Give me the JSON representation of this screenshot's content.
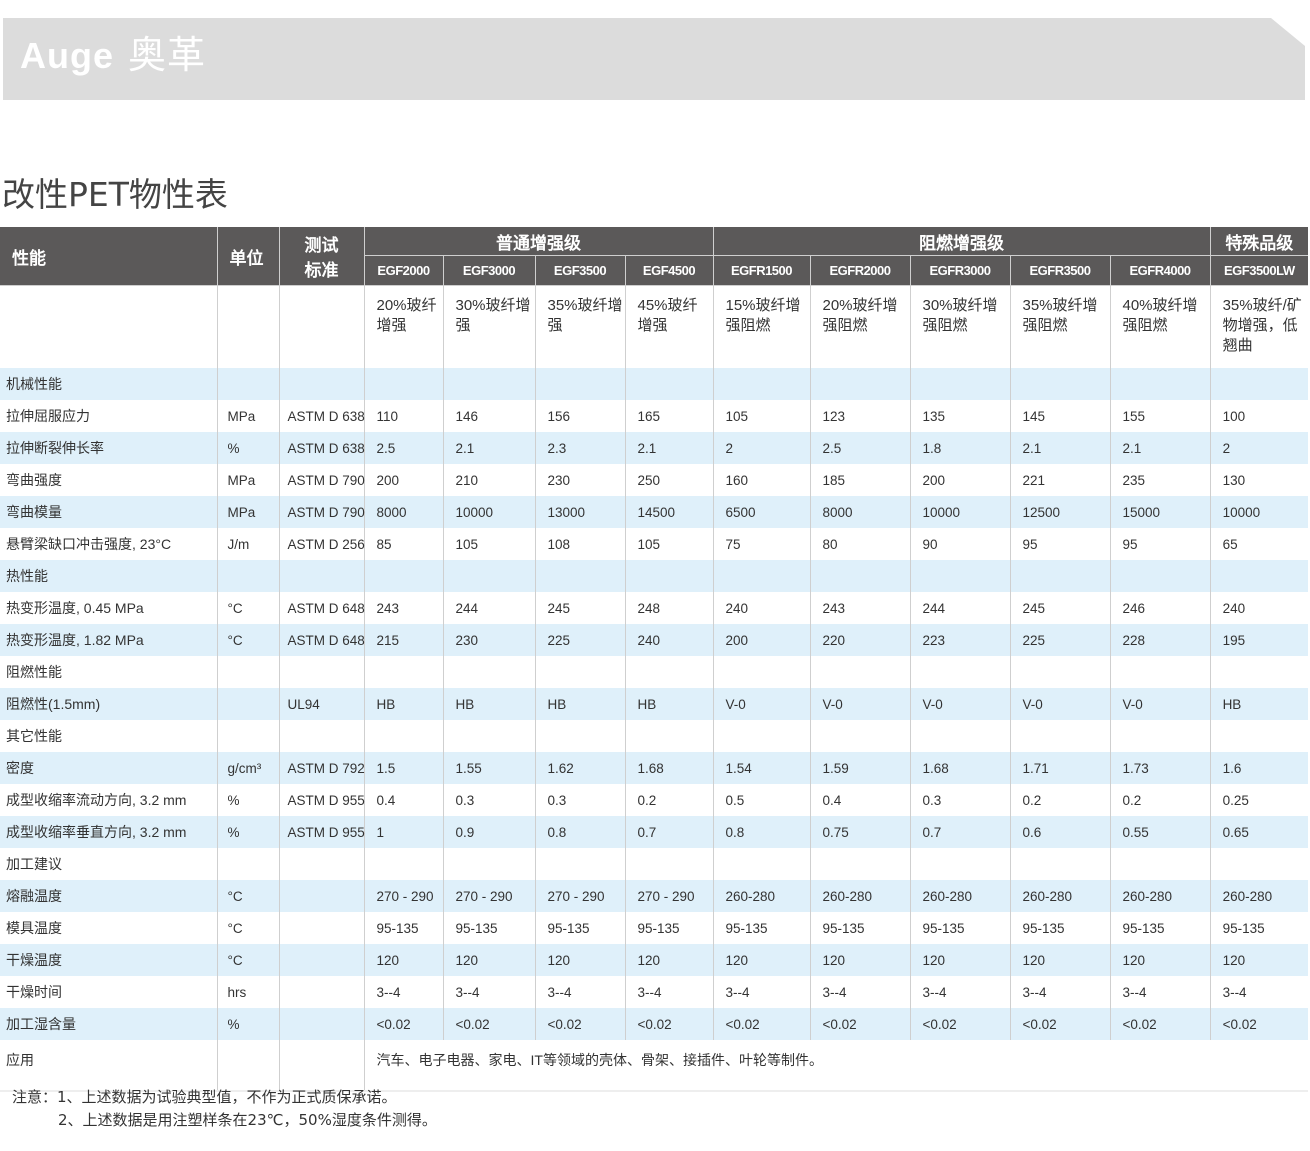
{
  "brand": {
    "latin": "Auge",
    "chinese": "奥革"
  },
  "title": "改性PET物性表",
  "header": {
    "property": "性能",
    "unit": "单位",
    "standard_line1": "测试",
    "standard_line2": "标准",
    "groups": [
      {
        "label": "普通增强级",
        "span": 4
      },
      {
        "label": "阻燃增强级",
        "span": 5
      },
      {
        "label": "特殊品级",
        "span": 1
      }
    ],
    "products": [
      "EGF2000",
      "EGF3000",
      "EGF3500",
      "EGF4500",
      "EGFR1500",
      "EGFR2000",
      "EGFR3000",
      "EGFR3500",
      "EGFR4000",
      "EGF3500LW"
    ],
    "descriptions": [
      "20%玻纤增强",
      "30%玻纤增强",
      "35%玻纤增强",
      "45%玻纤增强",
      "15%玻纤增强阻燃",
      "20%玻纤增强阻燃",
      "30%玻纤增强阻燃",
      "35%玻纤增强阻燃",
      "40%玻纤增强阻燃",
      "35%玻纤/矿物增强，低翘曲"
    ]
  },
  "rows": [
    {
      "label": "机械性能",
      "section": true
    },
    {
      "label": "拉伸屈服应力",
      "unit": "MPa",
      "standard": "ASTM D 638",
      "values": [
        "110",
        "146",
        "156",
        "165",
        "105",
        "123",
        "135",
        "145",
        "155",
        "100"
      ]
    },
    {
      "label": "拉伸断裂伸长率",
      "unit": "%",
      "standard": "ASTM D 638",
      "values": [
        "2.5",
        "2.1",
        "2.3",
        "2.1",
        "2",
        "2.5",
        "1.8",
        "2.1",
        "2.1",
        "2"
      ]
    },
    {
      "label": "弯曲强度",
      "unit": "MPa",
      "standard": "ASTM D 790",
      "values": [
        "200",
        "210",
        "230",
        "250",
        "160",
        "185",
        "200",
        "221",
        "235",
        "130"
      ]
    },
    {
      "label": "弯曲模量",
      "unit": "MPa",
      "standard": "ASTM D 790",
      "values": [
        "8000",
        "10000",
        "13000",
        "14500",
        "6500",
        "8000",
        "10000",
        "12500",
        "15000",
        "10000"
      ]
    },
    {
      "label": "悬臂梁缺口冲击强度, 23°C",
      "unit": "J/m",
      "standard": "ASTM D 256",
      "values": [
        "85",
        "105",
        "108",
        "105",
        "75",
        "80",
        "90",
        "95",
        "95",
        "65"
      ]
    },
    {
      "label": "热性能",
      "section": true
    },
    {
      "label": "热变形温度, 0.45 MPa",
      "unit": "°C",
      "standard": "ASTM D 648",
      "values": [
        "243",
        "244",
        "245",
        "248",
        "240",
        "243",
        "244",
        "245",
        "246",
        "240"
      ]
    },
    {
      "label": "热变形温度, 1.82 MPa",
      "unit": "°C",
      "standard": "ASTM D 648",
      "values": [
        "215",
        "230",
        "225",
        "240",
        "200",
        "220",
        "223",
        "225",
        "228",
        "195"
      ]
    },
    {
      "label": "阻燃性能",
      "section": true
    },
    {
      "label": "阻燃性(1.5mm)",
      "unit": "",
      "standard": "UL94",
      "values": [
        "HB",
        "HB",
        "HB",
        "HB",
        "V-0",
        "V-0",
        "V-0",
        "V-0",
        "V-0",
        "HB"
      ]
    },
    {
      "label": "其它性能",
      "section": true
    },
    {
      "label": "密度",
      "unit": "g/cm³",
      "standard": "ASTM D 792",
      "values": [
        "1.5",
        "1.55",
        "1.62",
        "1.68",
        "1.54",
        "1.59",
        "1.68",
        "1.71",
        "1.73",
        "1.6"
      ]
    },
    {
      "label": "成型收缩率流动方向, 3.2 mm",
      "unit": "%",
      "standard": "ASTM D 955",
      "values": [
        "0.4",
        "0.3",
        "0.3",
        "0.2",
        "0.5",
        "0.4",
        "0.3",
        "0.2",
        "0.2",
        "0.25"
      ]
    },
    {
      "label": "成型收缩率垂直方向, 3.2 mm",
      "unit": "%",
      "standard": "ASTM D 955",
      "values": [
        "1",
        "0.9",
        "0.8",
        "0.7",
        "0.8",
        "0.75",
        "0.7",
        "0.6",
        "0.55",
        "0.65"
      ]
    },
    {
      "label": "加工建议",
      "section": true
    },
    {
      "label": "熔融温度",
      "unit": "°C",
      "standard": "",
      "values": [
        "270 - 290",
        "270 - 290",
        "270 - 290",
        "270 - 290",
        "260-280",
        "260-280",
        "260-280",
        "260-280",
        "260-280",
        "260-280"
      ]
    },
    {
      "label": "模具温度",
      "unit": "°C",
      "standard": "",
      "values": [
        "95-135",
        "95-135",
        "95-135",
        "95-135",
        "95-135",
        "95-135",
        "95-135",
        "95-135",
        "95-135",
        "95-135"
      ]
    },
    {
      "label": "干燥温度",
      "unit": "°C",
      "standard": "",
      "values": [
        "120",
        "120",
        "120",
        "120",
        "120",
        "120",
        "120",
        "120",
        "120",
        "120"
      ]
    },
    {
      "label": "干燥时间",
      "unit": "hrs",
      "standard": "",
      "values": [
        "3--4",
        "3--4",
        "3--4",
        "3--4",
        "3--4",
        "3--4",
        "3--4",
        "3--4",
        "3--4",
        "3--4"
      ]
    },
    {
      "label": "加工湿含量",
      "unit": "%",
      "standard": "",
      "values": [
        "<0.02",
        "<0.02",
        "<0.02",
        "<0.02",
        "<0.02",
        "<0.02",
        "<0.02",
        "<0.02",
        "<0.02",
        "<0.02"
      ]
    }
  ],
  "application": {
    "label": "应用",
    "text": "汽车、电子电器、家电、IT等领域的壳体、骨架、接插件、叶轮等制件。"
  },
  "notes": [
    "注意：1、上述数据为试验典型值，不作为正式质保承诺。",
    "2、上述数据是用注塑样条在23℃，50%湿度条件测得。"
  ],
  "colors": {
    "header_bg": "#5b5959",
    "row_alt": "#dff0fa",
    "banner": "#dcdcdc"
  }
}
